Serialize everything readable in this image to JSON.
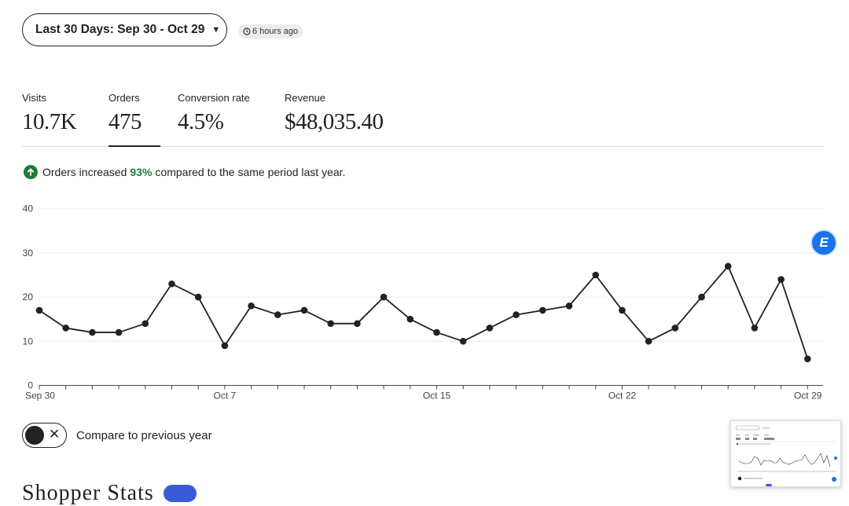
{
  "header": {
    "date_range_label": "Last 30 Days: Sep 30 - Oct 29",
    "updated_label": "6 hours ago"
  },
  "metrics": [
    {
      "label": "Visits",
      "value": "10.7K"
    },
    {
      "label": "Orders",
      "value": "475"
    },
    {
      "label": "Conversion rate",
      "value": "4.5%"
    },
    {
      "label": "Revenue",
      "value": "$48,035.40"
    }
  ],
  "selected_metric": "Orders",
  "insight": {
    "prefix": "Orders increased",
    "percent": "93%",
    "suffix": "compared to the same period last year."
  },
  "compare_toggle": {
    "label": "Compare to previous year",
    "on": false
  },
  "section_title": "Shopper Stats",
  "colors": {
    "text": "#222222",
    "positive": "#1f7a3d",
    "badge_blue": "#3b5bd6",
    "extension_blue": "#1a73e8"
  },
  "icons": [
    "caret-down-icon",
    "clock-icon",
    "arrow-up-icon",
    "close-icon",
    "extension-logo-icon"
  ],
  "chart_data": {
    "type": "line",
    "x": [
      "Sep 30",
      "Oct 1",
      "Oct 2",
      "Oct 3",
      "Oct 4",
      "Oct 5",
      "Oct 6",
      "Oct 7",
      "Oct 8",
      "Oct 9",
      "Oct 10",
      "Oct 11",
      "Oct 12",
      "Oct 13",
      "Oct 14",
      "Oct 15",
      "Oct 16",
      "Oct 17",
      "Oct 18",
      "Oct 19",
      "Oct 20",
      "Oct 21",
      "Oct 22",
      "Oct 23",
      "Oct 24",
      "Oct 25",
      "Oct 26",
      "Oct 27",
      "Oct 28",
      "Oct 29"
    ],
    "series": [
      {
        "values": [
          17,
          13,
          12,
          12,
          14,
          23,
          20,
          9,
          18,
          16,
          17,
          14,
          14,
          20,
          15,
          12,
          10,
          13,
          16,
          17,
          18,
          25,
          17,
          10,
          13,
          20,
          27,
          13,
          24,
          6
        ]
      }
    ],
    "x_tick_labels": [
      "Sep 30",
      "Oct 7",
      "Oct 15",
      "Oct 22",
      "Oct 29"
    ],
    "y_ticks": [
      "0",
      "10",
      "20",
      "30",
      "40"
    ],
    "ylim": [
      0,
      40
    ],
    "grid": true
  }
}
